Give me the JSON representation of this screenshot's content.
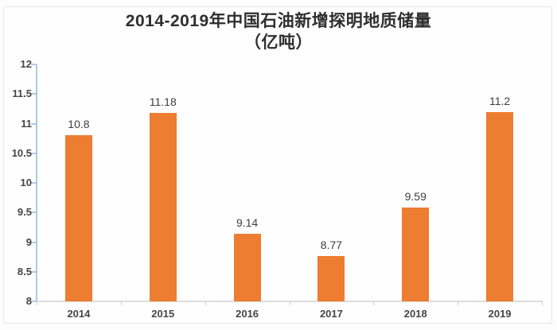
{
  "title": {
    "line1": "2014-2019年中国石油新增探明地质储量",
    "line2": "（亿吨）"
  },
  "chart_data": {
    "type": "bar",
    "title": "2014-2019年中国石油新增探明地质储量（亿吨）",
    "categories": [
      "2014",
      "2015",
      "2016",
      "2017",
      "2018",
      "2019"
    ],
    "values": [
      10.8,
      11.18,
      9.14,
      8.77,
      9.59,
      11.2
    ],
    "data_labels": [
      "10.8",
      "11.18",
      "9.14",
      "8.77",
      "9.59",
      "11.2"
    ],
    "xlabel": "",
    "ylabel": "",
    "ylim": [
      8,
      12
    ],
    "ytick_step": 0.5,
    "yticks": [
      "12",
      "11.5",
      "11",
      "10.5",
      "10",
      "9.5",
      "9",
      "8.5",
      "8"
    ],
    "grid": false,
    "legend": "none",
    "bar_color": "#ed7d31",
    "y_axis_color": "#abc9e8",
    "x_axis_color": "#dcdcdc",
    "label_color": "#3d3d3d"
  }
}
